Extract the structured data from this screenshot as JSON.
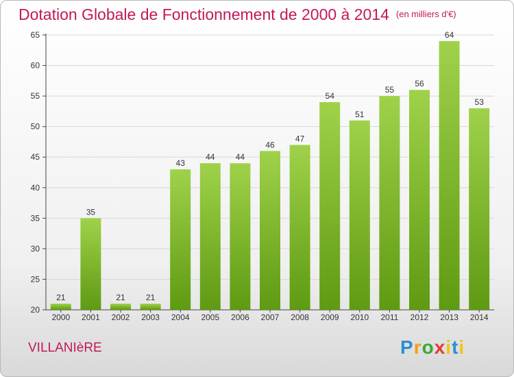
{
  "title": "Dotation Globale de Fonctionnement de 2000 à 2014",
  "subtitle": "(en milliers d'€)",
  "commune": "VILLANIèRE",
  "logo": {
    "text": "Proxiti"
  },
  "colors": {
    "title": "#c2185b",
    "bar_top": "#9fd24a",
    "bar_bottom": "#5e9a12",
    "grid": "#d8d8d8"
  },
  "chart_data": {
    "type": "bar",
    "title": "Dotation Globale de Fonctionnement de 2000 à 2014",
    "categories": [
      "2000",
      "2001",
      "2002",
      "2003",
      "2004",
      "2005",
      "2006",
      "2007",
      "2008",
      "2009",
      "2010",
      "2011",
      "2012",
      "2013",
      "2014"
    ],
    "values": [
      21,
      35,
      21,
      21,
      43,
      44,
      44,
      46,
      47,
      54,
      51,
      55,
      56,
      64,
      53
    ],
    "ylim": [
      20,
      65
    ],
    "yticks": [
      20,
      25,
      30,
      35,
      40,
      45,
      50,
      55,
      60,
      65
    ],
    "grid": true,
    "data_labels": true
  }
}
